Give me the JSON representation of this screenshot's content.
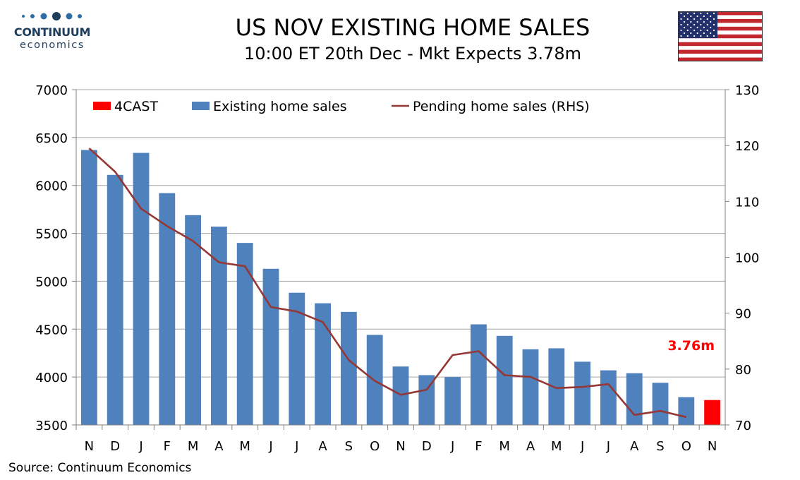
{
  "header": {
    "title": "US NOV EXISTING HOME SALES",
    "subtitle": "10:00 ET 20th Dec - Mkt Expects 3.78m"
  },
  "logo": {
    "name": "CONTINUUM",
    "sub": "economics",
    "color": "#1e3d5c"
  },
  "flag": {
    "icon": "us-flag-icon"
  },
  "source": "Source: Continuum Economics",
  "chart_data": {
    "type": "bar",
    "title": "",
    "categories": [
      "N",
      "D",
      "J",
      "F",
      "M",
      "A",
      "M",
      "J",
      "J",
      "A",
      "S",
      "O",
      "N",
      "D",
      "J",
      "F",
      "M",
      "A",
      "M",
      "J",
      "J",
      "A",
      "S",
      "O",
      "N"
    ],
    "series": [
      {
        "name": "Existing home sales",
        "type": "bar",
        "axis": "left",
        "color": "#4f81bd",
        "values": [
          6370,
          6110,
          6340,
          5920,
          5690,
          5570,
          5400,
          5130,
          4880,
          4770,
          4680,
          4440,
          4110,
          4020,
          4000,
          4550,
          4430,
          4290,
          4300,
          4160,
          4070,
          4040,
          3940,
          3790,
          null
        ]
      },
      {
        "name": "4CAST",
        "type": "bar",
        "axis": "left",
        "color": "#ff0000",
        "values": [
          null,
          null,
          null,
          null,
          null,
          null,
          null,
          null,
          null,
          null,
          null,
          null,
          null,
          null,
          null,
          null,
          null,
          null,
          null,
          null,
          null,
          null,
          null,
          null,
          3760
        ]
      },
      {
        "name": "Pending home sales (RHS)",
        "type": "line",
        "axis": "right",
        "color": "#953735",
        "values": [
          119.5,
          115.3,
          108.7,
          105.6,
          102.9,
          99.1,
          98.4,
          91.1,
          90.3,
          88.4,
          81.6,
          77.9,
          75.4,
          76.3,
          82.5,
          83.2,
          78.9,
          78.6,
          76.6,
          76.8,
          77.3,
          71.8,
          72.5,
          71.4,
          null
        ]
      }
    ],
    "y_left": {
      "min": 3500,
      "max": 7000,
      "step": 500,
      "ticks": [
        "3500",
        "4000",
        "4500",
        "5000",
        "5500",
        "6000",
        "6500",
        "7000"
      ]
    },
    "y_right": {
      "min": 70,
      "max": 130,
      "step": 10,
      "ticks": [
        "70",
        "80",
        "90",
        "100",
        "110",
        "120",
        "130"
      ]
    },
    "grid": true,
    "legend_position": "top",
    "annotation": {
      "text": "3.76m",
      "color": "#ff0000",
      "series": "4CAST",
      "index": 24
    }
  }
}
